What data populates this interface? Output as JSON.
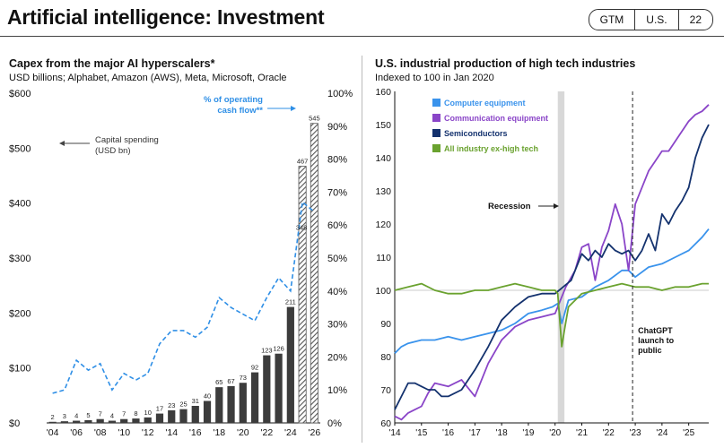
{
  "header": {
    "title": "Artificial intelligence: Investment",
    "badge": [
      "GTM",
      "U.S.",
      "22"
    ]
  },
  "colors": {
    "bar": "#3c3c3c",
    "hatch": "#555555",
    "dash": "#2f8fe6",
    "computer": "#3a93ec",
    "communication": "#8a45c8",
    "semiconductors": "#14326e",
    "allindustry": "#6aa22f",
    "recession": "#d8d8d8"
  },
  "left": {
    "title": "Capex from the major AI hyperscalers*",
    "subtitle": "USD billions; Alphabet, Amazon (AWS), Meta, Microsoft, Oracle",
    "chart_data": {
      "type": "bar",
      "title": "Capex from the major AI hyperscalers*",
      "categories": [
        "'04",
        "'05",
        "'06",
        "'07",
        "'08",
        "'09",
        "'10",
        "'11",
        "'12",
        "'13",
        "'14",
        "'15",
        "'16",
        "'17",
        "'18",
        "'19",
        "'20",
        "'21",
        "'22",
        "'23",
        "'24",
        "'25",
        "'26"
      ],
      "x_tick_labels": [
        "'04",
        "'06",
        "'08",
        "'10",
        "'12",
        "'14",
        "'16",
        "'18",
        "'20",
        "'22",
        "'24",
        "'26"
      ],
      "values": [
        2,
        3,
        4,
        5,
        7,
        4,
        7,
        8,
        10,
        17,
        23,
        25,
        31,
        40,
        65,
        67,
        73,
        92,
        123,
        126,
        211,
        null,
        null
      ],
      "forecast_values": [
        null,
        null,
        null,
        null,
        null,
        null,
        null,
        null,
        null,
        null,
        null,
        null,
        null,
        null,
        null,
        null,
        null,
        null,
        null,
        null,
        null,
        467,
        545
      ],
      "value_labels": [
        "2",
        "3",
        "4",
        "5",
        "7",
        "4",
        "7",
        "8",
        "10",
        "17",
        "23",
        "25",
        "31",
        "40",
        "65",
        "67",
        "73",
        "92",
        "123",
        "126",
        "211",
        "467",
        "545"
      ],
      "hatched_2025_2026_values": [
        467,
        545
      ],
      "series": [
        {
          "name": "Capital spending (USD bn)",
          "axis": "left",
          "values": [
            2,
            3,
            4,
            5,
            7,
            4,
            7,
            8,
            10,
            17,
            23,
            25,
            31,
            40,
            65,
            67,
            73,
            92,
            123,
            126,
            211,
            467,
            545
          ]
        },
        {
          "name": "% of operating cash flow**",
          "axis": "right",
          "values": [
            9,
            10,
            19,
            16,
            18,
            10,
            15,
            13,
            15,
            24,
            28,
            28,
            26,
            29,
            38,
            35,
            33,
            31,
            38,
            44,
            40,
            67,
            64
          ]
        }
      ],
      "ylim_left": [
        0,
        600
      ],
      "yticks_left": [
        "$0",
        "$100",
        "$200",
        "$300",
        "$400",
        "$500",
        "$600"
      ],
      "ylim_right": [
        0,
        100
      ],
      "yticks_right": [
        "0%",
        "10%",
        "20%",
        "30%",
        "40%",
        "50%",
        "60%",
        "70%",
        "80%",
        "90%",
        "100%"
      ],
      "annotations": {
        "capex": [
          "Capital spending",
          "(USD bn)"
        ],
        "ocf": [
          "% of operating",
          "cash flow**"
        ],
        "extra_label": "348"
      }
    }
  },
  "right": {
    "title": "U.S. industrial production of high tech industries",
    "subtitle": "Indexed to 100 in Jan 2020",
    "chart_data": {
      "type": "line",
      "title": "U.S. industrial production of high tech industries",
      "xlim": [
        2014,
        2025.75
      ],
      "x_tick_labels": [
        "'14",
        "'15",
        "'16",
        "'17",
        "'18",
        "'19",
        "'20",
        "'21",
        "'22",
        "'23",
        "'24",
        "'25"
      ],
      "ylim": [
        60,
        160
      ],
      "yticks": [
        "60",
        "70",
        "80",
        "90",
        "100",
        "110",
        "120",
        "130",
        "140",
        "150",
        "160"
      ],
      "series": [
        {
          "name": "Computer equipment",
          "colorKey": "computer",
          "x": [
            2014,
            2014.25,
            2014.5,
            2015,
            2015.5,
            2016,
            2016.5,
            2017,
            2017.5,
            2018,
            2018.5,
            2019,
            2019.5,
            2019.9,
            2020.1,
            2020.25,
            2020.5,
            2021,
            2021.5,
            2022,
            2022.5,
            2022.75,
            2023,
            2023.5,
            2024,
            2024.5,
            2025,
            2025.5,
            2025.75
          ],
          "y": [
            81,
            83,
            84,
            85,
            85,
            86,
            85,
            86,
            87,
            88,
            90,
            93,
            94,
            95,
            96,
            90,
            97,
            98,
            101,
            103,
            106,
            106,
            104,
            107,
            108,
            110,
            112,
            116,
            118.5
          ]
        },
        {
          "name": "Communication equipment",
          "colorKey": "communication",
          "x": [
            2014,
            2014.25,
            2014.5,
            2014.75,
            2015,
            2015.25,
            2015.5,
            2016,
            2016.5,
            2017,
            2017.5,
            2018,
            2018.5,
            2019,
            2019.5,
            2020,
            2020.2,
            2020.4,
            2020.75,
            2021,
            2021.25,
            2021.5,
            2021.75,
            2022,
            2022.25,
            2022.5,
            2022.75,
            2023,
            2023.25,
            2023.5,
            2023.75,
            2024,
            2024.25,
            2024.5,
            2024.75,
            2025,
            2025.25,
            2025.5,
            2025.75
          ],
          "y": [
            62,
            61,
            63,
            64,
            65,
            69,
            72,
            71,
            73,
            68,
            78,
            85,
            89,
            91,
            92,
            93,
            97,
            101,
            106,
            113,
            114,
            103,
            113,
            118,
            126,
            120,
            106,
            126,
            131,
            136,
            139,
            142,
            142,
            145,
            148,
            151,
            153,
            154,
            156
          ]
        },
        {
          "name": "Semiconductors",
          "colorKey": "semiconductors",
          "x": [
            2014,
            2014.25,
            2014.5,
            2014.75,
            2015,
            2015.25,
            2015.5,
            2015.75,
            2016,
            2016.5,
            2017,
            2017.5,
            2018,
            2018.5,
            2019,
            2019.5,
            2020,
            2020.3,
            2020.6,
            2021,
            2021.25,
            2021.5,
            2021.75,
            2022,
            2022.25,
            2022.5,
            2022.75,
            2023,
            2023.25,
            2023.5,
            2023.75,
            2024,
            2024.25,
            2024.5,
            2024.75,
            2025,
            2025.25,
            2025.5,
            2025.75
          ],
          "y": [
            64,
            68,
            72,
            72,
            71,
            70,
            70,
            68,
            68,
            70,
            76,
            83,
            91,
            95,
            98,
            99,
            99,
            101,
            103,
            111,
            109,
            112,
            110,
            114,
            112,
            111,
            112,
            109,
            112,
            117,
            112,
            123,
            120,
            124,
            127,
            131,
            140,
            146,
            150
          ]
        },
        {
          "name": "All industry ex-high tech",
          "colorKey": "allindustry",
          "x": [
            2014,
            2014.5,
            2015,
            2015.5,
            2016,
            2016.5,
            2017,
            2017.5,
            2018,
            2018.5,
            2019,
            2019.5,
            2020,
            2020.1,
            2020.25,
            2020.35,
            2020.5,
            2020.75,
            2021,
            2021.5,
            2022,
            2022.5,
            2023,
            2023.5,
            2024,
            2024.5,
            2025,
            2025.5,
            2025.75
          ],
          "y": [
            100,
            101,
            102,
            100,
            99,
            99,
            100,
            100,
            101,
            102,
            101,
            100,
            100,
            99,
            83,
            88,
            95,
            97,
            99,
            100,
            101,
            102,
            101,
            101,
            100,
            101,
            101,
            102,
            102
          ]
        }
      ],
      "recession": [
        2020.1,
        2020.35
      ],
      "chatgpt_launch": 2022.9,
      "annotations": {
        "recession": "Recession",
        "chatgpt": [
          "ChatGPT",
          "launch to",
          "public"
        ]
      }
    }
  }
}
